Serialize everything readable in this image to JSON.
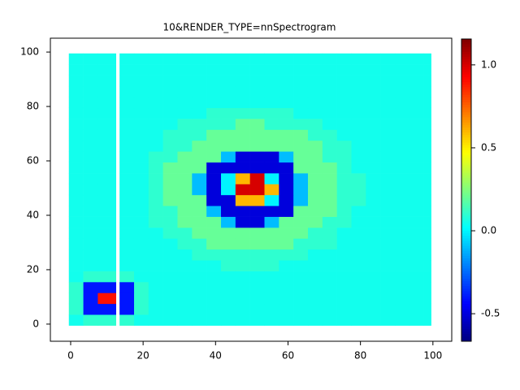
{
  "chart_data": {
    "type": "heatmap",
    "title": "10&RENDER_TYPE=nnSpectrogram",
    "x_edges": [
      -0.5,
      3.5,
      7.5,
      12.5,
      13.5,
      17.5,
      21.5,
      25.5,
      29.5,
      33.5,
      37.5,
      41.5,
      45.5,
      49.5,
      53.5,
      57.5,
      61.5,
      65.5,
      69.5,
      73.5,
      77.5,
      81.5,
      85.5,
      89.5,
      93.5,
      97.5,
      99.5
    ],
    "y_edges": [
      -0.5,
      3.5,
      7.5,
      11.5,
      15.5,
      19.5,
      23.5,
      27.5,
      31.5,
      35.5,
      39.5,
      43.5,
      47.5,
      51.5,
      55.5,
      59.5,
      63.5,
      67.5,
      71.5,
      75.5,
      79.5,
      83.5,
      87.5,
      91.5,
      95.5,
      99.5
    ],
    "values": [
      [
        0.05,
        0.1,
        0.1,
        null,
        0.1,
        0.05,
        0.05,
        0.05,
        0.05,
        0.05,
        0.05,
        0.05,
        0.05,
        0.05,
        0.05,
        0.05,
        0.05,
        0.05,
        0.05,
        0.05,
        0.05,
        0.05,
        0.05,
        0.05,
        0.05,
        0.05
      ],
      [
        0.1,
        -0.4,
        -0.4,
        null,
        -0.4,
        0.1,
        0.05,
        0.05,
        0.05,
        0.05,
        0.05,
        0.05,
        0.05,
        0.05,
        0.05,
        0.05,
        0.05,
        0.05,
        0.05,
        0.05,
        0.05,
        0.05,
        0.05,
        0.05,
        0.05,
        0.05
      ],
      [
        0.1,
        -0.4,
        0.9,
        null,
        -0.4,
        0.1,
        0.05,
        0.05,
        0.05,
        0.05,
        0.05,
        0.05,
        0.05,
        0.05,
        0.05,
        0.05,
        0.05,
        0.05,
        0.05,
        0.05,
        0.05,
        0.05,
        0.05,
        0.05,
        0.05,
        0.05
      ],
      [
        0.1,
        -0.4,
        -0.4,
        null,
        -0.4,
        0.1,
        0.05,
        0.05,
        0.05,
        0.05,
        0.05,
        0.05,
        0.05,
        0.05,
        0.05,
        0.05,
        0.05,
        0.05,
        0.05,
        0.05,
        0.05,
        0.05,
        0.05,
        0.05,
        0.05,
        0.05
      ],
      [
        0.05,
        0.1,
        0.1,
        null,
        0.1,
        0.05,
        0.05,
        0.05,
        0.05,
        0.05,
        0.05,
        0.05,
        0.05,
        0.05,
        0.05,
        0.05,
        0.05,
        0.05,
        0.05,
        0.05,
        0.05,
        0.05,
        0.05,
        0.05,
        0.05,
        0.05
      ],
      [
        0.05,
        0.05,
        0.05,
        null,
        0.05,
        0.05,
        0.05,
        0.05,
        0.05,
        0.05,
        0.05,
        0.1,
        0.1,
        0.1,
        0.1,
        0.05,
        0.05,
        0.05,
        0.05,
        0.05,
        0.05,
        0.05,
        0.05,
        0.05,
        0.05,
        0.05
      ],
      [
        0.05,
        0.05,
        0.05,
        null,
        0.05,
        0.05,
        0.05,
        0.05,
        0.05,
        0.1,
        0.1,
        0.1,
        0.1,
        0.1,
        0.1,
        0.1,
        0.1,
        0.05,
        0.05,
        0.05,
        0.05,
        0.05,
        0.05,
        0.05,
        0.05,
        0.05
      ],
      [
        0.05,
        0.05,
        0.05,
        null,
        0.05,
        0.05,
        0.05,
        0.05,
        0.1,
        0.1,
        0.2,
        0.2,
        0.2,
        0.2,
        0.2,
        0.2,
        0.1,
        0.1,
        0.1,
        0.05,
        0.05,
        0.05,
        0.05,
        0.05,
        0.05,
        0.05
      ],
      [
        0.05,
        0.05,
        0.05,
        null,
        0.05,
        0.05,
        0.05,
        0.1,
        0.1,
        0.2,
        0.2,
        0.2,
        0.2,
        0.2,
        0.2,
        0.2,
        0.2,
        0.1,
        0.1,
        0.05,
        0.05,
        0.05,
        0.05,
        0.05,
        0.05,
        0.05
      ],
      [
        0.05,
        0.05,
        0.05,
        null,
        0.05,
        0.05,
        0.1,
        0.1,
        0.2,
        0.2,
        0.2,
        -0.1,
        -0.5,
        -0.5,
        -0.1,
        0.2,
        0.2,
        0.2,
        0.1,
        0.1,
        0.05,
        0.05,
        0.05,
        0.05,
        0.05,
        0.05
      ],
      [
        0.05,
        0.05,
        0.05,
        null,
        0.05,
        0.05,
        0.1,
        0.1,
        0.2,
        0.2,
        -0.1,
        -0.5,
        -0.5,
        -0.5,
        -0.5,
        -0.5,
        0.2,
        0.2,
        0.2,
        0.1,
        0.05,
        0.05,
        0.05,
        0.05,
        0.05,
        0.05
      ],
      [
        0.05,
        0.05,
        0.05,
        null,
        0.05,
        0.05,
        0.1,
        0.2,
        0.2,
        0.2,
        -0.5,
        -0.5,
        0.6,
        0.6,
        0,
        -0.5,
        -0.1,
        0.2,
        0.2,
        0.1,
        0.1,
        0.05,
        0.05,
        0.05,
        0.05,
        0.05
      ],
      [
        0.05,
        0.05,
        0.05,
        null,
        0.05,
        0.05,
        0.1,
        0.2,
        0.2,
        -0.1,
        -0.5,
        0,
        1,
        1,
        0.6,
        -0.5,
        -0.1,
        0.2,
        0.2,
        0.1,
        0.1,
        0.05,
        0.05,
        0.05,
        0.05,
        0.05
      ],
      [
        0.05,
        0.05,
        0.05,
        null,
        0.05,
        0.05,
        0.1,
        0.2,
        0.2,
        -0.1,
        -0.5,
        0,
        0.6,
        1,
        0,
        -0.5,
        -0.1,
        0.2,
        0.2,
        0.1,
        0.1,
        0.05,
        0.05,
        0.05,
        0.05,
        0.05
      ],
      [
        0.05,
        0.05,
        0.05,
        null,
        0.05,
        0.05,
        0.1,
        0.2,
        0.2,
        0.2,
        -0.5,
        -0.5,
        -0.5,
        -0.5,
        -0.5,
        -0.5,
        0.2,
        0.2,
        0.2,
        0.1,
        0.05,
        0.05,
        0.05,
        0.05,
        0.05,
        0.05
      ],
      [
        0.05,
        0.05,
        0.05,
        null,
        0.05,
        0.05,
        0.1,
        0.1,
        0.2,
        0.2,
        0.2,
        -0.1,
        -0.5,
        -0.5,
        -0.5,
        -0.1,
        0.2,
        0.2,
        0.1,
        0.1,
        0.05,
        0.05,
        0.05,
        0.05,
        0.05,
        0.05
      ],
      [
        0.05,
        0.05,
        0.05,
        null,
        0.05,
        0.05,
        0.05,
        0.1,
        0.1,
        0.2,
        0.2,
        0.2,
        0.2,
        0.2,
        0.2,
        0.2,
        0.2,
        0.2,
        0.1,
        0.1,
        0.05,
        0.05,
        0.05,
        0.05,
        0.05,
        0.05
      ],
      [
        0.05,
        0.05,
        0.05,
        null,
        0.05,
        0.05,
        0.05,
        0.1,
        0.1,
        0.1,
        0.2,
        0.2,
        0.2,
        0.2,
        0.2,
        0.2,
        0.2,
        0.1,
        0.1,
        0.05,
        0.05,
        0.05,
        0.05,
        0.05,
        0.05,
        0.05
      ],
      [
        0.05,
        0.05,
        0.05,
        null,
        0.05,
        0.05,
        0.05,
        0.05,
        0.1,
        0.1,
        0.1,
        0.1,
        0.2,
        0.2,
        0.1,
        0.1,
        0.1,
        0.1,
        0.05,
        0.05,
        0.05,
        0.05,
        0.05,
        0.05,
        0.05,
        0.05
      ],
      [
        0.05,
        0.05,
        0.05,
        null,
        0.05,
        0.05,
        0.05,
        0.05,
        0.05,
        0.05,
        0.1,
        0.1,
        0.1,
        0.1,
        0.1,
        0.1,
        0.05,
        0.05,
        0.05,
        0.05,
        0.05,
        0.05,
        0.05,
        0.05,
        0.05,
        0.05
      ],
      [
        0.05,
        0.05,
        0.05,
        null,
        0.05,
        0.05,
        0.05,
        0.05,
        0.05,
        0.05,
        0.05,
        0.05,
        0.05,
        0.05,
        0.05,
        0.05,
        0.05,
        0.05,
        0.05,
        0.05,
        0.05,
        0.05,
        0.05,
        0.05,
        0.05,
        0.05
      ],
      [
        0.05,
        0.05,
        0.05,
        null,
        0.05,
        0.05,
        0.05,
        0.05,
        0.05,
        0.05,
        0.05,
        0.05,
        0.05,
        0.05,
        0.05,
        0.05,
        0.05,
        0.05,
        0.05,
        0.05,
        0.05,
        0.05,
        0.05,
        0.05,
        0.05,
        0.05
      ],
      [
        0.05,
        0.05,
        0.05,
        null,
        0.05,
        0.05,
        0.05,
        0.05,
        0.05,
        0.05,
        0.05,
        0.05,
        0.05,
        0.05,
        0.05,
        0.05,
        0.05,
        0.05,
        0.05,
        0.05,
        0.05,
        0.05,
        0.05,
        0.05,
        0.05,
        0.05
      ],
      [
        0.05,
        0.05,
        0.05,
        null,
        0.05,
        0.05,
        0.05,
        0.05,
        0.05,
        0.05,
        0.05,
        0.05,
        0.05,
        0.05,
        0.05,
        0.05,
        0.05,
        0.05,
        0.05,
        0.05,
        0.05,
        0.05,
        0.05,
        0.05,
        0.05,
        0.05
      ],
      [
        0.05,
        0.05,
        0.05,
        null,
        0.05,
        0.05,
        0.05,
        0.05,
        0.05,
        0.05,
        0.05,
        0.05,
        0.05,
        0.05,
        0.05,
        0.05,
        0.05,
        0.05,
        0.05,
        0.05,
        0.05,
        0.05,
        0.05,
        0.05,
        0.05,
        0.05
      ]
    ],
    "xlim": [
      -5.6,
      105.2
    ],
    "ylim": [
      -6.3,
      105.1
    ],
    "xticks": [
      0,
      20,
      40,
      60,
      80,
      100
    ],
    "yticks": [
      0,
      20,
      40,
      60,
      80,
      100
    ],
    "clim": [
      -0.666,
      1.156
    ],
    "cticks": [
      {
        "value": 1,
        "label": "1.0"
      },
      {
        "value": 0.5,
        "label": "0.5"
      },
      {
        "value": 0,
        "label": "0.0"
      },
      -0.5
    ],
    "colormap": [
      "#00007f",
      "#0000ff",
      "#007fff",
      "#00ffff",
      "#7fff7f",
      "#ffff00",
      "#ff7f00",
      "#ff0000",
      "#7f0000"
    ]
  }
}
